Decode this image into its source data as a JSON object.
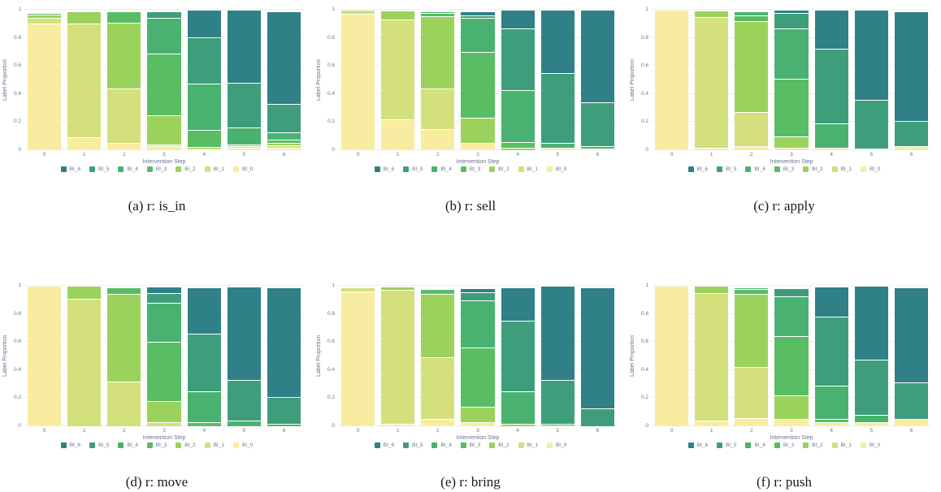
{
  "axis": {
    "ylabel": "Label Proportion",
    "xlabel": "Intervention Step",
    "yticks": [
      0,
      0.2,
      0.4,
      0.6,
      0.8,
      1
    ],
    "ylim": [
      0,
      1
    ],
    "grid": "horizontal",
    "legend_position": "bottom-center"
  },
  "palette": {
    "BI_6": "#2f8087",
    "BI_5": "#3e9e7c",
    "BI_4": "#4ab271",
    "BI_3": "#59bd63",
    "BI_2": "#9bd25c",
    "BI_1": "#d3e07b",
    "BI_0": "#f8eca1"
  },
  "legend_order": [
    "BI_6",
    "BI_5",
    "BI_4",
    "BI_3",
    "BI_2",
    "BI_1",
    "BI_0"
  ],
  "chart_data": [
    {
      "type": "bar",
      "stacked": true,
      "caption": "(a) r: is_in",
      "relation": "is_in",
      "categories": [
        0,
        1,
        2,
        3,
        4,
        5,
        6
      ],
      "series": [
        {
          "name": "BI_6",
          "values": [
            0,
            0,
            0,
            0,
            0.195,
            0.52,
            0.66
          ]
        },
        {
          "name": "BI_5",
          "values": [
            0.005,
            0,
            0,
            0.05,
            0.33,
            0.32,
            0.2
          ]
        },
        {
          "name": "BI_4",
          "values": [
            0,
            0,
            0,
            0.25,
            0.33,
            0.12,
            0.055
          ]
        },
        {
          "name": "BI_3",
          "values": [
            0.01,
            0,
            0.08,
            0.44,
            0.12,
            0,
            0.025
          ]
        },
        {
          "name": "BI_2",
          "values": [
            0.02,
            0.09,
            0.47,
            0.21,
            0.01,
            0.01,
            0.015
          ]
        },
        {
          "name": "BI_1",
          "values": [
            0.045,
            0.81,
            0.39,
            0.01,
            0,
            0.01,
            0.015
          ]
        },
        {
          "name": "BI_0",
          "values": [
            0.9,
            0.09,
            0.05,
            0.03,
            0.015,
            0.02,
            0.02
          ]
        }
      ]
    },
    {
      "type": "bar",
      "stacked": true,
      "caption": "(b) r: sell",
      "relation": "sell",
      "categories": [
        0,
        1,
        2,
        3,
        4,
        5,
        6
      ],
      "series": [
        {
          "name": "BI_6",
          "values": [
            0,
            0,
            0,
            0.03,
            0.13,
            0.45,
            0.66
          ]
        },
        {
          "name": "BI_5",
          "values": [
            0,
            0,
            0,
            0.02,
            0.44,
            0.495,
            0.31
          ]
        },
        {
          "name": "BI_4",
          "values": [
            0,
            0,
            0.015,
            0.24,
            0.37,
            0.04,
            0.02
          ]
        },
        {
          "name": "BI_3",
          "values": [
            0,
            0,
            0.02,
            0.47,
            0.04,
            0,
            0
          ]
        },
        {
          "name": "BI_2",
          "values": [
            0,
            0.065,
            0.515,
            0.18,
            0.02,
            0,
            0
          ]
        },
        {
          "name": "BI_1",
          "values": [
            0.03,
            0.71,
            0.29,
            0,
            0,
            0,
            0
          ]
        },
        {
          "name": "BI_0",
          "values": [
            0.97,
            0.22,
            0.15,
            0.05,
            0,
            0.015,
            0.01
          ]
        }
      ]
    },
    {
      "type": "bar",
      "stacked": true,
      "caption": "(c) r: apply",
      "relation": "apply",
      "categories": [
        0,
        1,
        2,
        3,
        4,
        5,
        6
      ],
      "series": [
        {
          "name": "BI_6",
          "values": [
            0,
            0,
            0,
            0.02,
            0.28,
            0.64,
            0.78
          ]
        },
        {
          "name": "BI_5",
          "values": [
            0,
            0,
            0,
            0.11,
            0.53,
            0.35,
            0.18
          ]
        },
        {
          "name": "BI_4",
          "values": [
            0,
            0,
            0.03,
            0.36,
            0.17,
            0,
            0
          ]
        },
        {
          "name": "BI_3",
          "values": [
            0,
            0,
            0.04,
            0.41,
            0,
            0,
            0
          ]
        },
        {
          "name": "BI_2",
          "values": [
            0,
            0.045,
            0.65,
            0.08,
            0,
            0,
            0
          ]
        },
        {
          "name": "BI_1",
          "values": [
            0,
            0.93,
            0.24,
            0,
            0,
            0,
            0
          ]
        },
        {
          "name": "BI_0",
          "values": [
            1.0,
            0.02,
            0.03,
            0.02,
            0.02,
            0.01,
            0.03
          ]
        }
      ]
    },
    {
      "type": "bar",
      "stacked": true,
      "caption": "(d) r: move",
      "relation": "move",
      "categories": [
        0,
        1,
        2,
        3,
        4,
        5,
        6
      ],
      "series": [
        {
          "name": "BI_6",
          "values": [
            0,
            0,
            0,
            0.045,
            0.33,
            0.665,
            0.78
          ]
        },
        {
          "name": "BI_5",
          "values": [
            0,
            0,
            0,
            0.07,
            0.41,
            0.29,
            0.19
          ]
        },
        {
          "name": "BI_4",
          "values": [
            0,
            0,
            0,
            0.28,
            0.22,
            0.04,
            0.02
          ]
        },
        {
          "name": "BI_3",
          "values": [
            0,
            0,
            0.045,
            0.42,
            0.03,
            0,
            0
          ]
        },
        {
          "name": "BI_2",
          "values": [
            0,
            0.09,
            0.625,
            0.15,
            0,
            0,
            0
          ]
        },
        {
          "name": "BI_1",
          "values": [
            0,
            0.91,
            0.32,
            0.03,
            0,
            0,
            0
          ]
        },
        {
          "name": "BI_0",
          "values": [
            1.0,
            0,
            0,
            0,
            0,
            0,
            0
          ]
        }
      ]
    },
    {
      "type": "bar",
      "stacked": true,
      "caption": "(e) r: bring",
      "relation": "bring",
      "categories": [
        0,
        1,
        2,
        3,
        4,
        5,
        6
      ],
      "series": [
        {
          "name": "BI_6",
          "values": [
            0,
            0,
            0,
            0.03,
            0.24,
            0.67,
            0.86
          ]
        },
        {
          "name": "BI_5",
          "values": [
            0,
            0,
            0,
            0.06,
            0.5,
            0.31,
            0.13
          ]
        },
        {
          "name": "BI_4",
          "values": [
            0,
            0,
            0,
            0.335,
            0.23,
            0.01,
            0
          ]
        },
        {
          "name": "BI_3",
          "values": [
            0,
            0,
            0.04,
            0.42,
            0,
            0,
            0
          ]
        },
        {
          "name": "BI_2",
          "values": [
            0,
            0.025,
            0.45,
            0.11,
            0.02,
            0,
            0
          ]
        },
        {
          "name": "BI_1",
          "values": [
            0.03,
            0.95,
            0.44,
            0,
            0,
            0,
            0
          ]
        },
        {
          "name": "BI_0",
          "values": [
            0.96,
            0.02,
            0.05,
            0.03,
            0,
            0.01,
            0
          ]
        }
      ]
    },
    {
      "type": "bar",
      "stacked": true,
      "caption": "(f) r: push",
      "relation": "push",
      "categories": [
        0,
        1,
        2,
        3,
        4,
        5,
        6
      ],
      "series": [
        {
          "name": "BI_6",
          "values": [
            0,
            0,
            0,
            0,
            0.215,
            0.525,
            0.68
          ]
        },
        {
          "name": "BI_5",
          "values": [
            0,
            0,
            0,
            0.06,
            0.49,
            0.395,
            0.26
          ]
        },
        {
          "name": "BI_4",
          "values": [
            0,
            0,
            0.015,
            0.285,
            0.24,
            0.05,
            0
          ]
        },
        {
          "name": "BI_3",
          "values": [
            0,
            0,
            0.035,
            0.42,
            0.02,
            0,
            0
          ]
        },
        {
          "name": "BI_2",
          "values": [
            0,
            0.05,
            0.52,
            0.17,
            0,
            0,
            0
          ]
        },
        {
          "name": "BI_1",
          "values": [
            0,
            0.91,
            0.36,
            0,
            0,
            0,
            0
          ]
        },
        {
          "name": "BI_0",
          "values": [
            1.0,
            0.04,
            0.06,
            0.05,
            0.03,
            0.03,
            0.05
          ]
        }
      ]
    }
  ]
}
